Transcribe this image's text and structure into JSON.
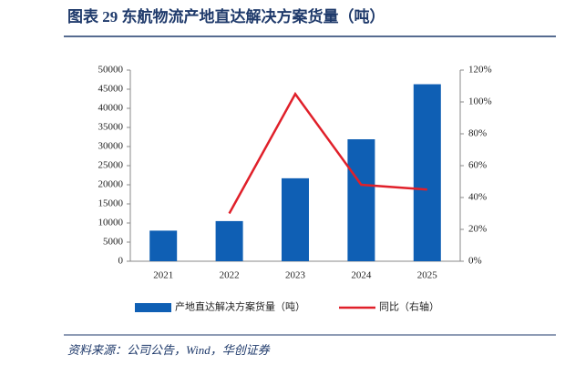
{
  "chart_data": {
    "type": "bar-line",
    "title": "图表 29   东航物流产地直达解决方案货量（吨）",
    "source": "资料来源：公司公告，Wind，华创证券",
    "categories": [
      "2021",
      "2022",
      "2023",
      "2024",
      "2025"
    ],
    "series": [
      {
        "name": "产地直达解决方案货量（吨）",
        "color": "#0f5fb4",
        "type": "bar",
        "values": [
          8000,
          10500,
          21700,
          31900,
          46300
        ]
      },
      {
        "name": "同比（右轴）",
        "color": "#e0202a",
        "type": "line",
        "axis": "y2",
        "values": [
          null,
          30,
          105,
          48,
          45
        ]
      }
    ],
    "ylim": [
      0,
      50000
    ],
    "yticks": [
      0,
      5000,
      10000,
      15000,
      20000,
      25000,
      30000,
      35000,
      40000,
      45000,
      50000
    ],
    "y2lim": [
      0,
      120
    ],
    "y2ticks": [
      {
        "value": 0,
        "label": "0%"
      },
      {
        "value": 20,
        "label": "20%"
      },
      {
        "value": 40,
        "label": "40%"
      },
      {
        "value": 60,
        "label": "60%"
      },
      {
        "value": 80,
        "label": "80%"
      },
      {
        "value": 100,
        "label": "100%"
      },
      {
        "value": 120,
        "label": "120%"
      }
    ],
    "legend": "bottom"
  }
}
